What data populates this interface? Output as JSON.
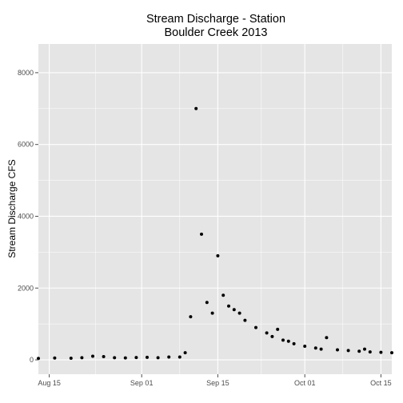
{
  "chart_data": {
    "type": "scatter",
    "title_line1": "Stream Discharge - Station",
    "title_line2": "Boulder Creek 2013",
    "xlabel": "",
    "ylabel": "Stream Discharge CFS",
    "x_ticks": [
      {
        "date": "2013-08-15",
        "label": "Aug 15"
      },
      {
        "date": "2013-09-01",
        "label": "Sep 01"
      },
      {
        "date": "2013-09-15",
        "label": "Sep 15"
      },
      {
        "date": "2013-10-01",
        "label": "Oct 01"
      },
      {
        "date": "2013-10-15",
        "label": "Oct 15"
      }
    ],
    "y_ticks": [
      0,
      2000,
      4000,
      6000,
      8000
    ],
    "xlim": [
      "2013-08-13",
      "2013-10-17"
    ],
    "ylim": [
      -400,
      8800
    ],
    "grid": true,
    "background": "#e5e5e5",
    "grid_color": "#ffffff",
    "point_color": "#000000",
    "x": [
      "2013-08-13",
      "2013-08-16",
      "2013-08-19",
      "2013-08-21",
      "2013-08-23",
      "2013-08-25",
      "2013-08-27",
      "2013-08-29",
      "2013-08-31",
      "2013-09-02",
      "2013-09-04",
      "2013-09-06",
      "2013-09-08",
      "2013-09-09",
      "2013-09-10",
      "2013-09-11",
      "2013-09-12",
      "2013-09-13",
      "2013-09-14",
      "2013-09-15",
      "2013-09-16",
      "2013-09-17",
      "2013-09-18",
      "2013-09-19",
      "2013-09-20",
      "2013-09-22",
      "2013-09-24",
      "2013-09-25",
      "2013-09-26",
      "2013-09-27",
      "2013-09-28",
      "2013-09-29",
      "2013-10-01",
      "2013-10-03",
      "2013-10-04",
      "2013-10-05",
      "2013-10-07",
      "2013-10-09",
      "2013-10-11",
      "2013-10-12",
      "2013-10-13",
      "2013-10-15",
      "2013-10-17"
    ],
    "values": [
      40,
      50,
      45,
      60,
      100,
      90,
      60,
      55,
      65,
      70,
      60,
      80,
      80,
      200,
      1200,
      7000,
      3500,
      1600,
      1300,
      2900,
      1800,
      1500,
      1400,
      1300,
      1100,
      900,
      750,
      650,
      850,
      550,
      520,
      450,
      380,
      330,
      300,
      620,
      280,
      260,
      240,
      300,
      220,
      210,
      200
    ]
  }
}
